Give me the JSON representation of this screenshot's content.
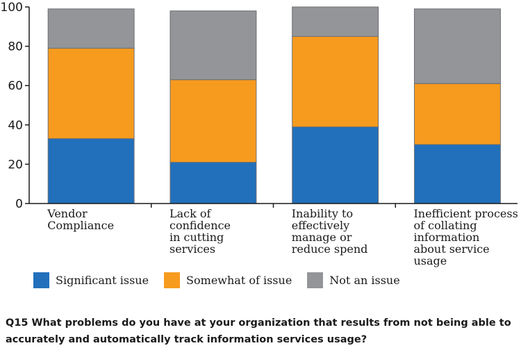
{
  "chart_data": {
    "type": "bar",
    "stacked": true,
    "categories": [
      [
        "Vendor",
        "Compliance"
      ],
      [
        "Lack of",
        "confidence",
        "in cutting",
        "services"
      ],
      [
        "Inability to",
        "effectively",
        "manage or",
        "reduce spend"
      ],
      [
        "Inefficient process",
        "of collating",
        "information",
        "about service",
        "usage"
      ]
    ],
    "series": [
      {
        "name": "Significant issue",
        "color": "#2270BB",
        "values": [
          33,
          21,
          39,
          30
        ]
      },
      {
        "name": "Somewhat of issue",
        "color": "#F79B1F",
        "values": [
          46,
          42,
          46,
          31
        ]
      },
      {
        "name": "Not an issue",
        "color": "#939598",
        "values": [
          20,
          35,
          15,
          38
        ]
      }
    ],
    "ylim": [
      0,
      100
    ],
    "yticks": [
      0,
      20,
      40,
      60,
      80,
      100
    ],
    "title": "",
    "xlabel": "",
    "ylabel": ""
  },
  "question": "Q15 What problems do you have at your organization that results from not being able to accurately and automatically track information services usage?"
}
